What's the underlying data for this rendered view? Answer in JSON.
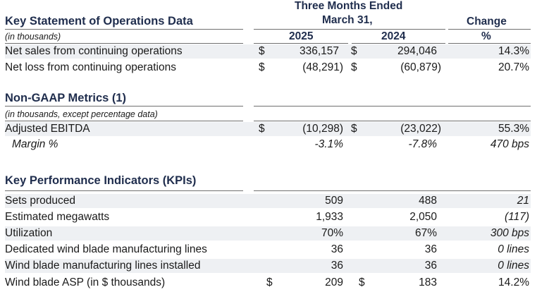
{
  "header": {
    "period_line1": "Three Months Ended",
    "period_line2": "March 31,",
    "change_label": "Change",
    "col_2025": "2025",
    "col_2024": "2024",
    "col_pct": "%"
  },
  "ops": {
    "title": "Key Statement of Operations Data",
    "units_note": "(in thousands)",
    "rows": [
      {
        "label": "Net sales from continuing operations",
        "cur1": "$",
        "v2025": "336,157",
        "cur2": "$",
        "v2024": "294,046",
        "change": "14.3%"
      },
      {
        "label": "Net loss from continuing operations",
        "cur1": "$",
        "v2025": "(48,291)",
        "cur2": "$",
        "v2024": "(60,879)",
        "change": "20.7%"
      }
    ]
  },
  "nongaap": {
    "title": "Non-GAAP Metrics (1)",
    "units_note": "(in thousands, except percentage data)",
    "rows": [
      {
        "label": "Adjusted EBITDA",
        "cur1": "$",
        "v2025": "(10,298)",
        "cur2": "$",
        "v2024": "(23,022)",
        "change": "55.3%"
      },
      {
        "label": "Margin %",
        "v2025": "-3.1%",
        "v2024": "-7.8%",
        "change": "470 bps"
      }
    ]
  },
  "kpis": {
    "title": "Key Performance Indicators (KPIs)",
    "rows": [
      {
        "label": "Sets produced",
        "v2025": "509",
        "v2024": "488",
        "change": "21"
      },
      {
        "label": "Estimated megawatts",
        "v2025": "1,933",
        "v2024": "2,050",
        "change": "(117)"
      },
      {
        "label": "Utilization",
        "v2025": "70%",
        "v2024": "67%",
        "change": "300 bps"
      },
      {
        "label": "Dedicated wind blade manufacturing lines",
        "v2025": "36",
        "v2024": "36",
        "change": "0 lines"
      },
      {
        "label": "Wind blade manufacturing lines installed",
        "v2025": "36",
        "v2024": "36",
        "change": "0 lines"
      },
      {
        "label": "Wind blade ASP (in $ thousands)",
        "cur1": "$",
        "v2025": "209",
        "cur2": "$",
        "v2024": "183",
        "change": "14.2%"
      }
    ]
  }
}
